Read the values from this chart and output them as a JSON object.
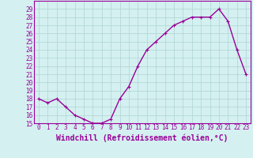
{
  "x": [
    0,
    1,
    2,
    3,
    4,
    5,
    6,
    7,
    8,
    9,
    10,
    11,
    12,
    13,
    14,
    15,
    16,
    17,
    18,
    19,
    20,
    21,
    22,
    23
  ],
  "y": [
    18,
    17.5,
    18,
    17,
    16,
    15.5,
    15,
    15,
    15.5,
    18,
    19.5,
    22,
    24,
    25,
    26,
    27,
    27.5,
    28,
    28,
    28,
    29,
    27.5,
    24,
    21
  ],
  "line_color": "#990099",
  "marker": "+",
  "bg_color": "#d4f0f0",
  "grid_color": "#b0d4d4",
  "xlabel": "Windchill (Refroidissement éolien,°C)",
  "ylim": [
    15,
    30
  ],
  "yticks": [
    15,
    16,
    17,
    18,
    19,
    20,
    21,
    22,
    23,
    24,
    25,
    26,
    27,
    28,
    29
  ],
  "xlim": [
    -0.5,
    23.5
  ],
  "xticks": [
    0,
    1,
    2,
    3,
    4,
    5,
    6,
    7,
    8,
    9,
    10,
    11,
    12,
    13,
    14,
    15,
    16,
    17,
    18,
    19,
    20,
    21,
    22,
    23
  ],
  "xlabel_color": "#990099",
  "tick_color": "#990099",
  "spine_color": "#990099",
  "tick_fontsize": 5.5,
  "xlabel_fontsize": 7,
  "line_width": 1.0,
  "marker_size": 3
}
